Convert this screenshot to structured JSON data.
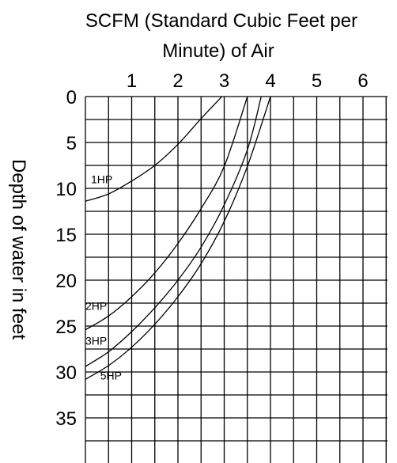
{
  "chart_data": {
    "type": "line",
    "title_lines": [
      "SCFM (Standard Cubic Feet per",
      "Minute) of Air"
    ],
    "xlabel": "SCFM (Standard Cubic Feet per Minute) of Air",
    "ylabel": "Depth of water in feet",
    "x_ticks": [
      "1",
      "2",
      "3",
      "4",
      "5",
      "6"
    ],
    "y_ticks": [
      "0",
      "5",
      "10",
      "15",
      "20",
      "25",
      "30",
      "35"
    ],
    "xlim": [
      0,
      6.5
    ],
    "ylim": [
      0,
      40
    ],
    "y_inverted": true,
    "x_axis_position": "top",
    "grid": true,
    "series": [
      {
        "name": "1HP",
        "points": [
          [
            0,
            11.4
          ],
          [
            0.5,
            10.6
          ],
          [
            1.0,
            9.2
          ],
          [
            1.5,
            7.5
          ],
          [
            2.0,
            5.2
          ],
          [
            2.5,
            2.4
          ],
          [
            2.95,
            0
          ]
        ]
      },
      {
        "name": "2HP",
        "points": [
          [
            0,
            25.4
          ],
          [
            0.5,
            23.9
          ],
          [
            1.0,
            21.8
          ],
          [
            1.5,
            19.2
          ],
          [
            2.0,
            16.0
          ],
          [
            2.5,
            12.2
          ],
          [
            3.0,
            7.6
          ],
          [
            3.5,
            0
          ]
        ]
      },
      {
        "name": "3HP",
        "points": [
          [
            0,
            29.4
          ],
          [
            0.5,
            27.8
          ],
          [
            1.0,
            25.6
          ],
          [
            1.5,
            23.0
          ],
          [
            2.0,
            20.0
          ],
          [
            2.5,
            16.4
          ],
          [
            3.0,
            11.8
          ],
          [
            3.5,
            5.8
          ],
          [
            3.8,
            0
          ]
        ]
      },
      {
        "name": "5HP",
        "points": [
          [
            0,
            30.8
          ],
          [
            0.5,
            29.3
          ],
          [
            1.0,
            27.3
          ],
          [
            1.5,
            24.8
          ],
          [
            2.0,
            21.8
          ],
          [
            2.5,
            18.2
          ],
          [
            3.0,
            13.6
          ],
          [
            3.5,
            7.6
          ],
          [
            4.0,
            0
          ]
        ]
      }
    ]
  }
}
